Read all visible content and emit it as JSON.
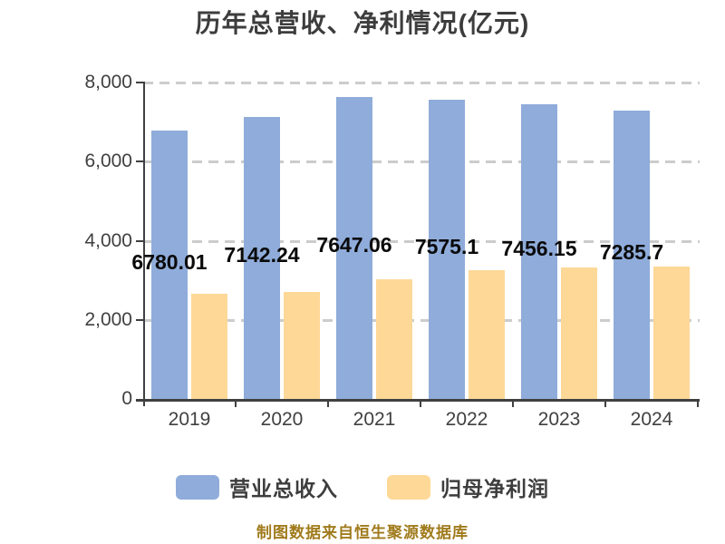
{
  "title": "历年总营收、净利情况(亿元)",
  "footer": "制图数据来自恒生聚源数据库",
  "colors": {
    "revenue_bar": "#8FACDA",
    "profit_bar": "#FDD897",
    "gridline": "#CCCCCC",
    "axis": "#404040",
    "axis_label": "#404040",
    "title_text": "#3D3D3D",
    "data_label": "#0A0A0A",
    "footer_text": "#A07B1C"
  },
  "legend": {
    "items": [
      {
        "label": "营业总收入",
        "color": "#8FACDA"
      },
      {
        "label": "归母净利润",
        "color": "#FDD897"
      }
    ]
  },
  "chart_data": {
    "type": "bar",
    "title": "历年总营收、净利情况(亿元)",
    "categories": [
      "2019",
      "2020",
      "2021",
      "2022",
      "2023",
      "2024"
    ],
    "series": [
      {
        "name": "营业总收入",
        "color": "#8FACDA",
        "values": [
          6780.01,
          7142.24,
          7647.06,
          7575.1,
          7456.15,
          7285.7
        ],
        "data_labels": [
          "6780.01",
          "7142.24",
          "7647.06",
          "7575.1",
          "7456.15",
          "7285.7"
        ],
        "labels_shown": true
      },
      {
        "name": "归母净利润",
        "color": "#FDD897",
        "values": [
          2670,
          2710,
          3030,
          3260,
          3330,
          3350
        ],
        "values_estimated_from_gridlines": true,
        "labels_shown": false
      }
    ],
    "xlabel": "",
    "ylabel": "",
    "ylim": [
      0,
      8000
    ],
    "ytick_labels": [
      "0",
      "2,000",
      "4,000",
      "6,000",
      "8,000"
    ],
    "ytick_values": [
      0,
      2000,
      4000,
      6000,
      8000
    ],
    "grid": "horizontal dashed",
    "legend_position": "bottom",
    "unit": "亿元"
  }
}
